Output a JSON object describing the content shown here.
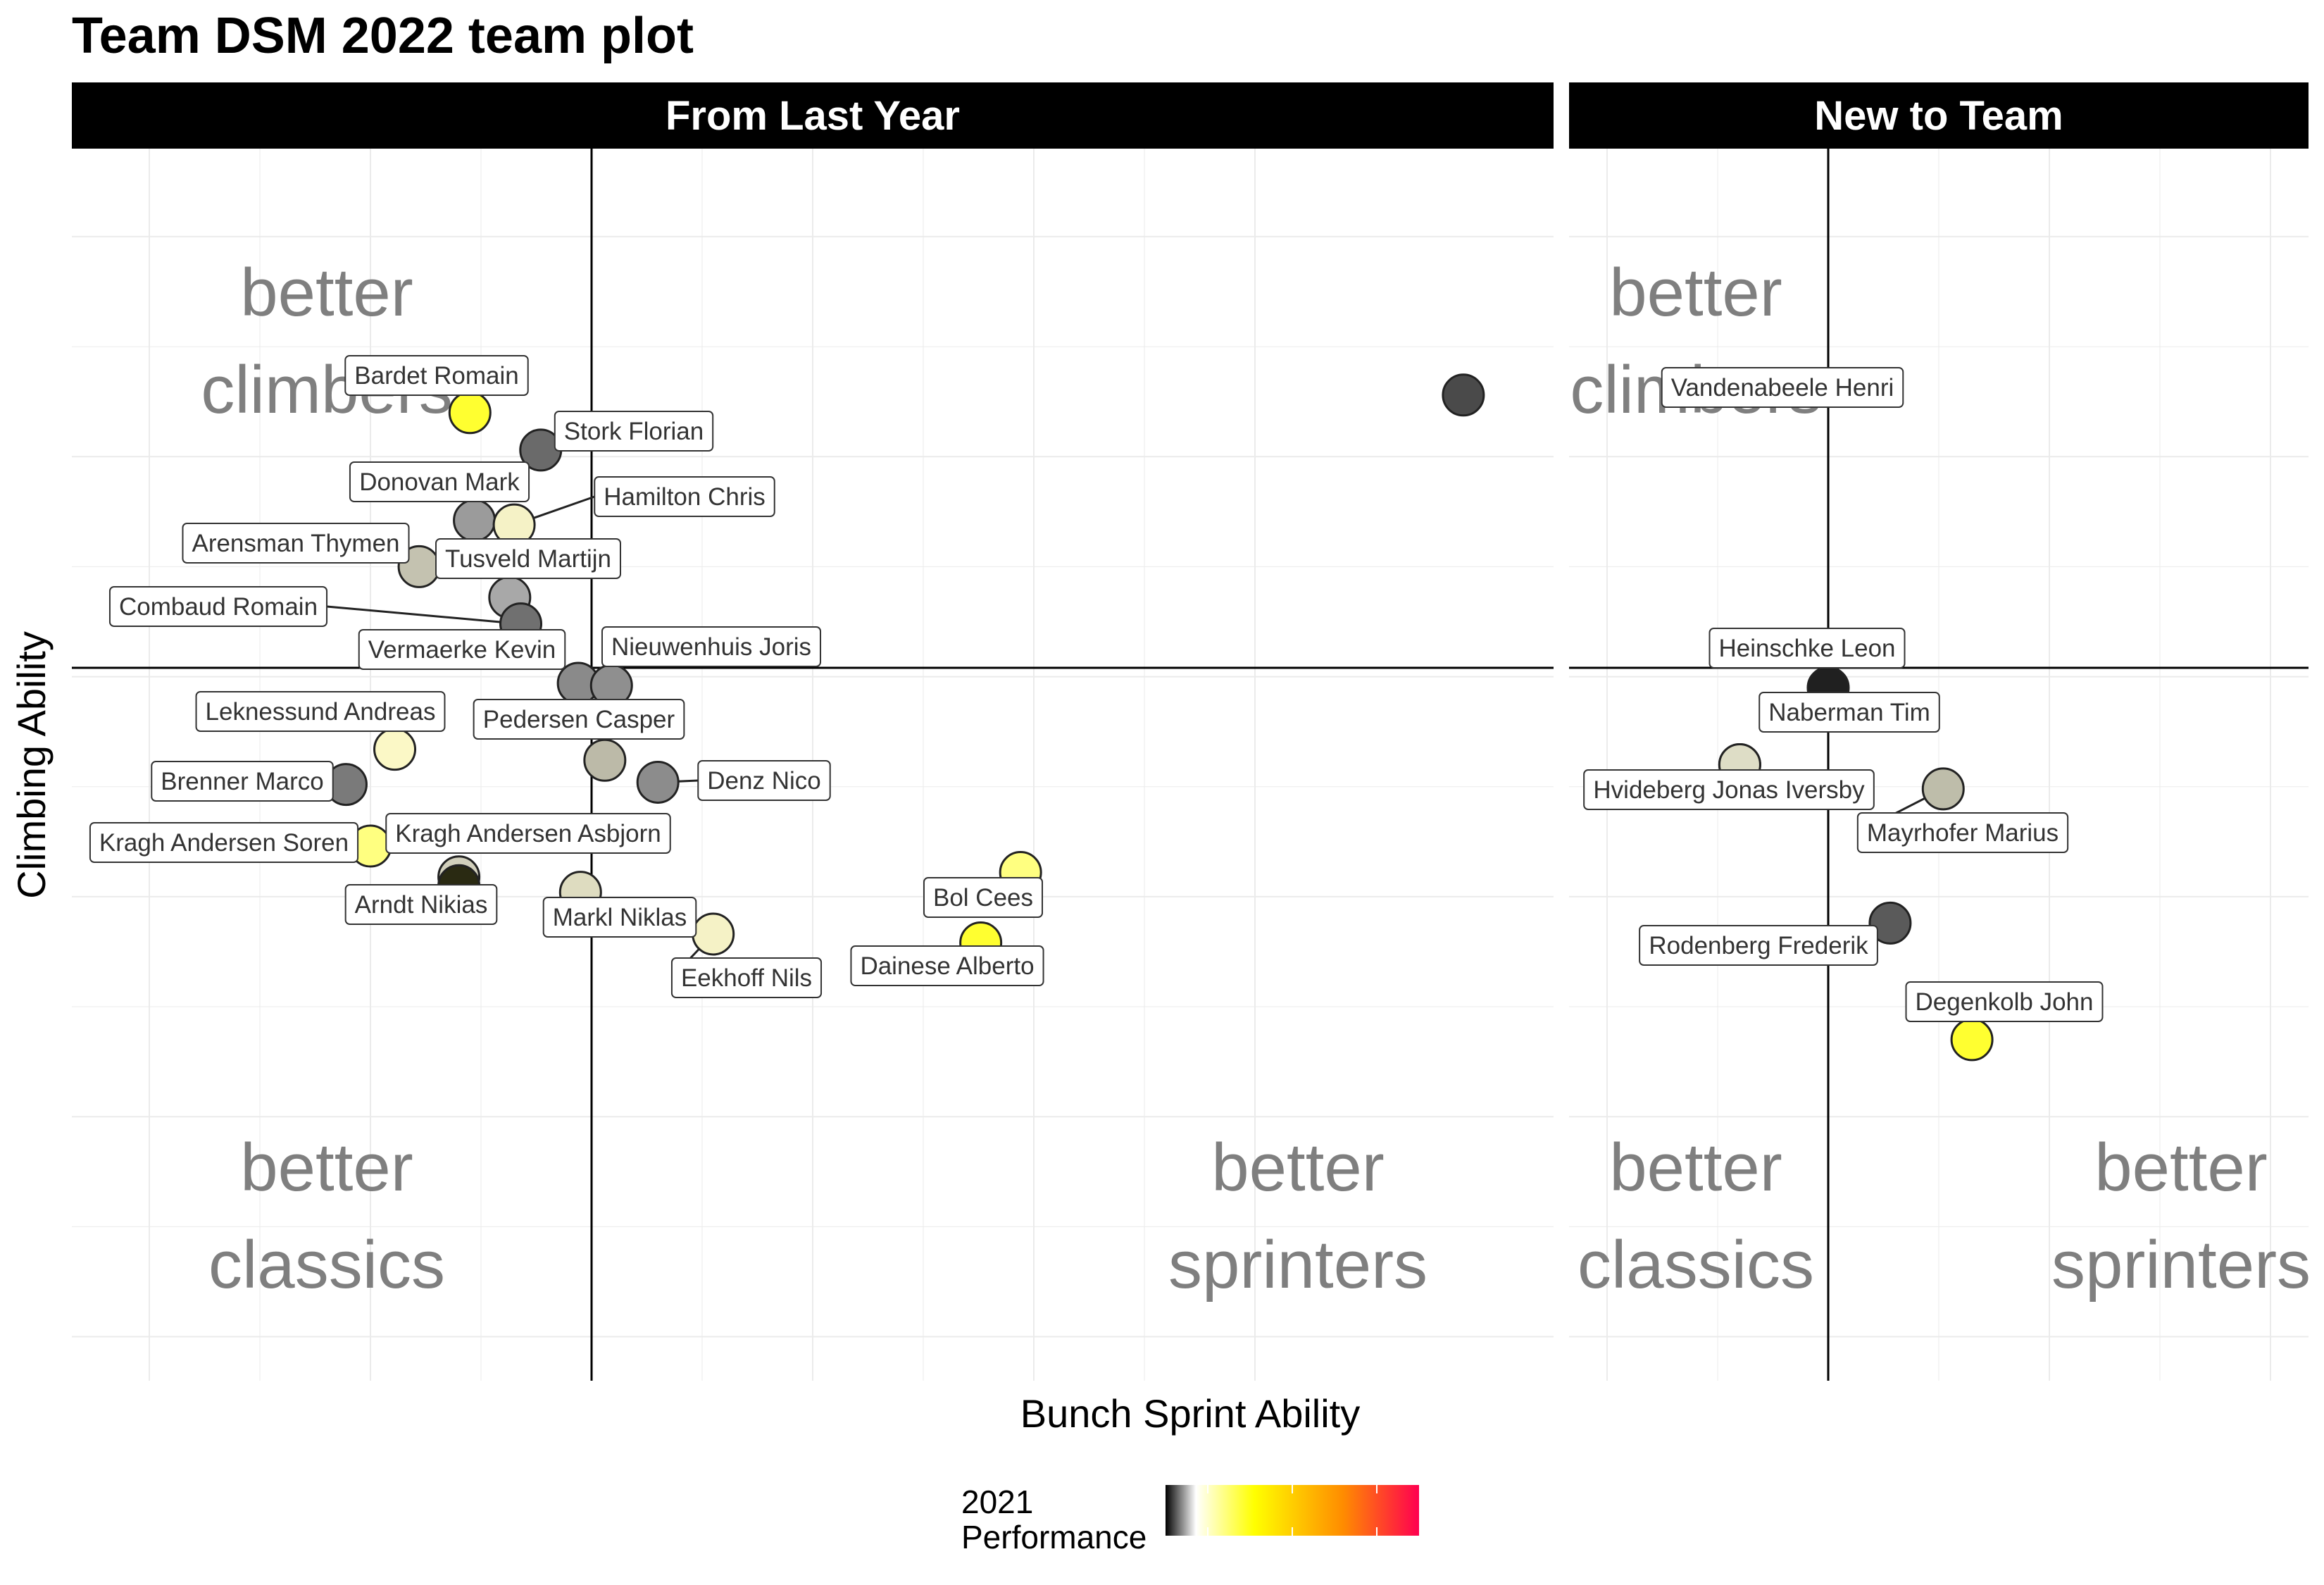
{
  "chart_data": {
    "type": "scatter",
    "title": "Team DSM 2022 team plot",
    "xlabel": "Bunch Sprint Ability",
    "ylabel": "Climbing Ability",
    "xlim": [
      -2.0,
      4.4
    ],
    "ylim": [
      -3.2,
      2.4
    ],
    "vline": 0,
    "hline": 0,
    "legend": {
      "title": "2021\nPerformance",
      "placement": "bottom",
      "type": "colorbar",
      "colors": [
        "#000000",
        "#ffffff",
        "#ffff00",
        "#ff8c00",
        "#ff0050"
      ]
    },
    "quadrant_labels": {
      "top_left": "better\nclimbers",
      "bottom_left": "better\nclassics",
      "bottom_right": "better\nsprinters"
    },
    "panels": [
      {
        "name": "From Last Year",
        "points": [
          {
            "label": "Bardet Romain",
            "x": -0.55,
            "y": 1.2,
            "color": "#ffff30"
          },
          {
            "label": "Stork Florian",
            "x": -0.23,
            "y": 1.03,
            "color": "#6a6a6a"
          },
          {
            "label": "Donovan Mark",
            "x": -0.53,
            "y": 0.71,
            "color": "#9b9b9b"
          },
          {
            "label": "Hamilton Chris",
            "x": -0.35,
            "y": 0.69,
            "color": "#f5f2c6"
          },
          {
            "label": "Arensman Thymen",
            "x": -0.78,
            "y": 0.5,
            "color": "#c4c2b0"
          },
          {
            "label": "Tusveld Martijn",
            "x": -0.37,
            "y": 0.36,
            "color": "#a8a8a8"
          },
          {
            "label": "Combaud Romain",
            "x": -0.32,
            "y": 0.24,
            "color": "#707070"
          },
          {
            "label": "Vermaerke Kevin",
            "x": -0.06,
            "y": -0.03,
            "color": "#8a8a8a"
          },
          {
            "label": "Nieuwenhuis Joris",
            "x": 0.09,
            "y": -0.04,
            "color": "#8f8f8f"
          },
          {
            "label": "Leknessund Andreas",
            "x": -0.89,
            "y": -0.33,
            "color": "#fbf8c6"
          },
          {
            "label": "Pedersen Casper",
            "x": 0.06,
            "y": -0.38,
            "color": "#bcbaa8"
          },
          {
            "label": "Denz Nico",
            "x": 0.3,
            "y": -0.48,
            "color": "#8c8c8c"
          },
          {
            "label": "Brenner Marco",
            "x": -1.11,
            "y": -0.49,
            "color": "#7a7a7a"
          },
          {
            "label": "Kragh Andersen Soren",
            "x": -1.0,
            "y": -0.77,
            "color": "#ffff80"
          },
          {
            "label": "Kragh Andersen Asbjorn",
            "x": -0.6,
            "y": -0.91,
            "color": "#d2d0bc"
          },
          {
            "label": "Arndt Nikias",
            "x": -0.6,
            "y": -0.95,
            "color": "#2a2a12"
          },
          {
            "label": "Markl Niklas",
            "x": -0.05,
            "y": -0.98,
            "color": "#dedcc0"
          },
          {
            "label": "Eekhoff Nils",
            "x": 0.55,
            "y": -1.17,
            "color": "#f5f2c6"
          },
          {
            "label": "Bol Cees",
            "x": 1.94,
            "y": -0.89,
            "color": "#ffff80"
          },
          {
            "label": "Dainese Alberto",
            "x": 1.76,
            "y": -1.21,
            "color": "#ffff30"
          }
        ]
      },
      {
        "name": "New to Team",
        "points": [
          {
            "label": "Vandenabeele Henri",
            "x": -1.65,
            "y": 1.28,
            "color": "#4a4a4a"
          },
          {
            "label": "Heinschke Leon",
            "x": 0.0,
            "y": -0.05,
            "color": "#202020"
          },
          {
            "label": "Naberman Tim",
            "x": -0.4,
            "y": -0.4,
            "color": "#deddc6"
          },
          {
            "label": "Hvideberg Jonas Iversby",
            "x": -0.4,
            "y": -0.4,
            "color": "#deddc6"
          },
          {
            "label": "Mayrhofer Marius",
            "x": 0.52,
            "y": -0.51,
            "color": "#bebdaa"
          },
          {
            "label": "Rodenberg Frederik",
            "x": 0.28,
            "y": -1.12,
            "color": "#5a5a5a"
          },
          {
            "label": "Degenkolb John",
            "x": 0.65,
            "y": -1.65,
            "color": "#ffff30"
          }
        ]
      }
    ]
  }
}
